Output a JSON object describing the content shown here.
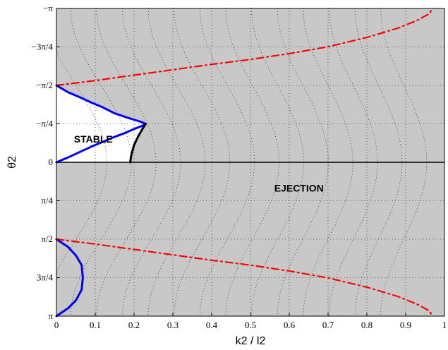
{
  "chart_data": {
    "type": "line",
    "xlabel": "k2 / l2",
    "ylabel": "θ2",
    "xlim": [
      0,
      1
    ],
    "ylim_note": "θ2 from -π (top) to π (bottom), zero in middle",
    "ylim": [
      -3.14159,
      3.14159
    ],
    "x_ticks": [
      0,
      0.1,
      0.2,
      0.3,
      0.4,
      0.5,
      0.6,
      0.7,
      0.8,
      0.9,
      1
    ],
    "x_tick_labels": [
      "0",
      "0.1",
      "0.2",
      "0.3",
      "0.4",
      "0.5",
      "0.6",
      "0.7",
      "0.8",
      "0.9",
      "1"
    ],
    "y_ticks": [
      -3.14159,
      -2.35619,
      -1.5708,
      -0.7854,
      0,
      0.7854,
      1.5708,
      2.35619,
      3.14159
    ],
    "y_tick_labels": [
      "−π",
      "−3π/4",
      "−π/2",
      "−π/4",
      "0",
      "π/4",
      "π/2",
      "3π/4",
      "π"
    ],
    "grid": true,
    "background_color": "#c8c8c8",
    "stable_region_color": "#ffffff",
    "annotations": [
      {
        "text": "STABLE",
        "x": 0.095,
        "y": -0.4
      },
      {
        "text": "EJECTION",
        "x": 0.625,
        "y": 0.6
      }
    ],
    "series": [
      {
        "color": "#0000ff",
        "style": "solid",
        "points": [
          [
            0,
            -1.5708
          ],
          [
            0.03,
            -1.43
          ],
          [
            0.06,
            -1.33
          ],
          [
            0.09,
            -1.22
          ],
          [
            0.12,
            -1.12
          ],
          [
            0.15,
            -1.0
          ],
          [
            0.18,
            -0.92
          ],
          [
            0.2,
            -0.87
          ],
          [
            0.22,
            -0.82
          ],
          [
            0.23,
            -0.785
          ],
          [
            0.22,
            -0.74
          ],
          [
            0.2,
            -0.68
          ],
          [
            0.18,
            -0.61
          ],
          [
            0.15,
            -0.52
          ],
          [
            0.12,
            -0.42
          ],
          [
            0.09,
            -0.32
          ],
          [
            0.06,
            -0.21
          ],
          [
            0.03,
            -0.1
          ],
          [
            0,
            0
          ]
        ]
      },
      {
        "color": "#000000",
        "style": "solid",
        "points": [
          [
            0.19,
            0
          ],
          [
            0.193,
            -0.15
          ],
          [
            0.2,
            -0.35
          ],
          [
            0.21,
            -0.52
          ],
          [
            0.22,
            -0.66
          ],
          [
            0.23,
            -0.785
          ]
        ]
      },
      {
        "color": "#0000ff",
        "style": "solid",
        "points": [
          [
            0,
            1.5708
          ],
          [
            0.03,
            1.73
          ],
          [
            0.05,
            1.9
          ],
          [
            0.065,
            2.1
          ],
          [
            0.068,
            2.36
          ],
          [
            0.065,
            2.6
          ],
          [
            0.05,
            2.82
          ],
          [
            0.03,
            2.98
          ],
          [
            0,
            3.14159
          ]
        ]
      },
      {
        "color": "#ff0000",
        "style": "dashdot",
        "points": [
          [
            0,
            -1.5708
          ],
          [
            0.1,
            -1.67
          ],
          [
            0.2,
            -1.78
          ],
          [
            0.3,
            -1.89
          ],
          [
            0.4,
            -2.0
          ],
          [
            0.5,
            -2.1
          ],
          [
            0.6,
            -2.22
          ],
          [
            0.7,
            -2.36
          ],
          [
            0.8,
            -2.55
          ],
          [
            0.88,
            -2.74
          ],
          [
            0.93,
            -2.9
          ],
          [
            0.96,
            -3.03
          ],
          [
            0.97,
            -3.14159
          ]
        ]
      },
      {
        "color": "#ff0000",
        "style": "dashdot",
        "points": [
          [
            0,
            1.5708
          ],
          [
            0.1,
            1.67
          ],
          [
            0.2,
            1.78
          ],
          [
            0.3,
            1.89
          ],
          [
            0.4,
            2.0
          ],
          [
            0.5,
            2.1
          ],
          [
            0.6,
            2.22
          ],
          [
            0.7,
            2.36
          ],
          [
            0.8,
            2.55
          ],
          [
            0.88,
            2.74
          ],
          [
            0.93,
            2.9
          ],
          [
            0.96,
            3.03
          ],
          [
            0.97,
            3.14159
          ]
        ]
      }
    ]
  }
}
